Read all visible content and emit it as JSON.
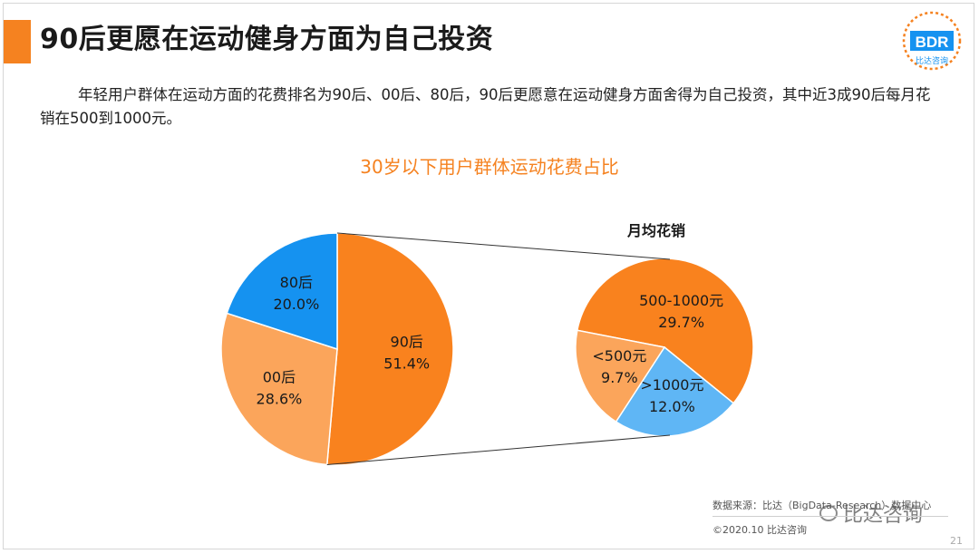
{
  "header": {
    "title": "90后更愿在运动健身方面为自己投资",
    "logo_text": "BDR",
    "logo_subtitle": "比达咨询"
  },
  "description": "年轻用户群体在运动方面的花费排名为90后、00后、80后，90后更愿意在运动健身方面舍得为自己投资，其中近3成90后每月花销在500到1000元。",
  "colors": {
    "accent": "#f58220",
    "orange": "#f9821e",
    "light_orange": "#fba55b",
    "blue": "#1592f0",
    "light_blue": "#5fb6f5"
  },
  "chart_data": [
    {
      "type": "pie",
      "title": "30岁以下用户群体运动花费占比",
      "slices": [
        {
          "label": "90后",
          "value": 51.4,
          "display": "51.4%",
          "color": "#f9821e"
        },
        {
          "label": "00后",
          "value": 28.6,
          "display": "28.6%",
          "color": "#fba55b"
        },
        {
          "label": "80后",
          "value": 20.0,
          "display": "20.0%",
          "color": "#1592f0"
        }
      ]
    },
    {
      "type": "pie",
      "title": "月均花销",
      "parent_slice": "90后",
      "slices": [
        {
          "label": "500-1000元",
          "value": 29.7,
          "display": "29.7%",
          "color": "#f9821e"
        },
        {
          "label": ">1000元",
          "value": 12.0,
          "display": "12.0%",
          "color": "#5fb6f5"
        },
        {
          "label": "<500元",
          "value": 9.7,
          "display": "9.7%",
          "color": "#fba55b"
        }
      ]
    }
  ],
  "footer": {
    "source": "数据来源：比达（BigData-Research）数据中心",
    "copyright": "©2020.10 比达咨询",
    "watermark": "比达咨询",
    "page_number": "21"
  }
}
